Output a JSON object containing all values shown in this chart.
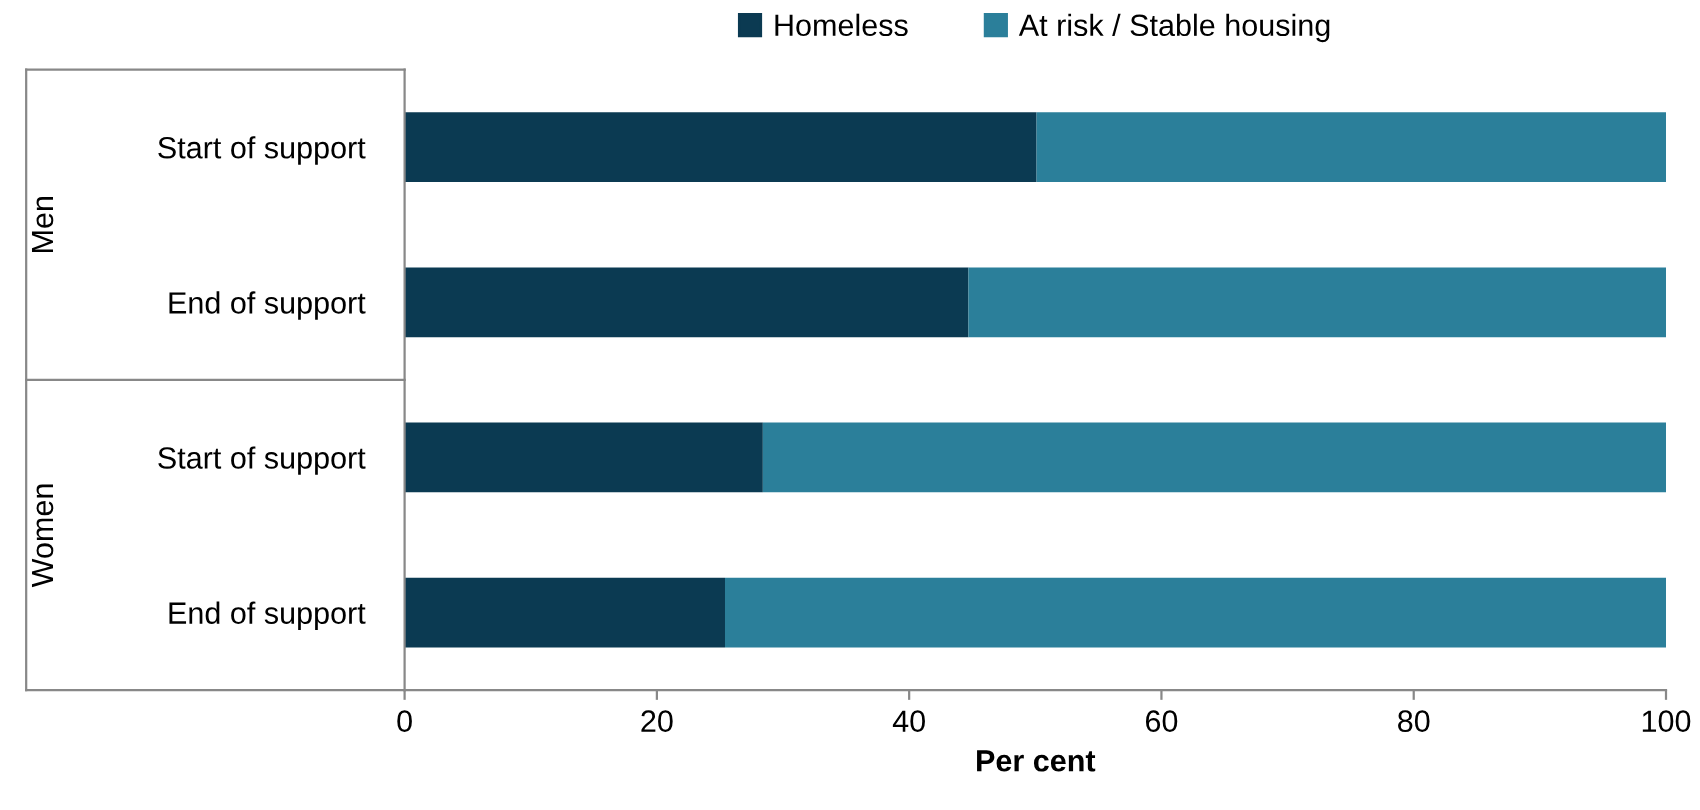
{
  "chart_data": {
    "type": "bar",
    "orientation": "horizontal",
    "stacked": true,
    "categories": [
      "Start of support",
      "End of support",
      "Start of support",
      "End of support"
    ],
    "series": [
      {
        "name": "Homeless",
        "color": "#0b3a52",
        "values": [
          50.1,
          44.7,
          28.4,
          25.4
        ]
      },
      {
        "name": "At risk / Stable housing",
        "color": "#2b7f9a",
        "values": [
          49.9,
          55.3,
          71.6,
          74.6
        ]
      }
    ],
    "xlabel": "Per cent",
    "xlim": [
      0,
      100
    ],
    "xticks": [
      0,
      20,
      40,
      60,
      80,
      100
    ],
    "annotations": [
      "Men",
      "Women"
    ],
    "grid": false,
    "legend": "top"
  }
}
